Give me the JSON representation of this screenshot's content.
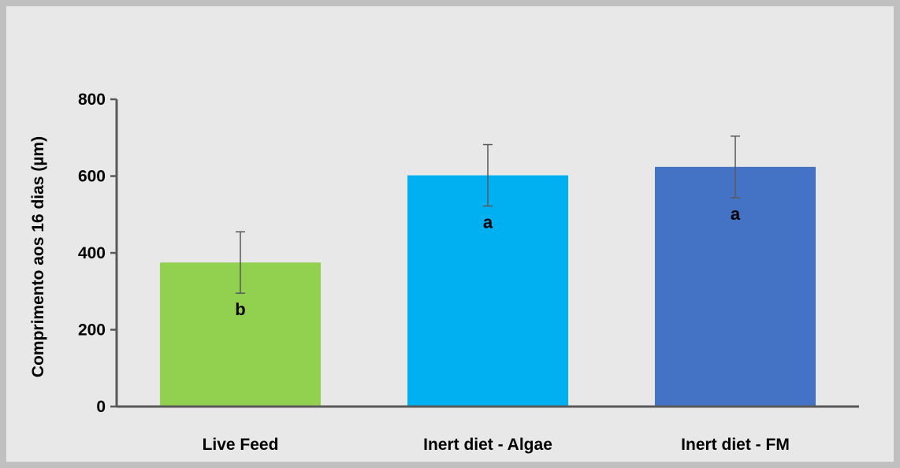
{
  "chart_data": {
    "type": "bar",
    "title": "",
    "xlabel": "",
    "ylabel": "Comprimento aos 16 dias (µm)",
    "ylim": [
      0,
      800
    ],
    "yticks": [
      0,
      200,
      400,
      600,
      800
    ],
    "grid": false,
    "categories": [
      "Live Feed",
      "Inert diet - Algae",
      "Inert diet - FM"
    ],
    "values": [
      375,
      602,
      624
    ],
    "error": [
      80,
      80,
      80
    ],
    "significance": [
      "b",
      "a",
      "a"
    ],
    "colors": [
      "#92d050",
      "#00b0f0",
      "#4472c4"
    ]
  }
}
